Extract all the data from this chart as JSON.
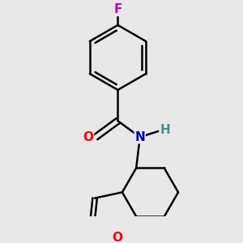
{
  "background_color": "#e8e8e8",
  "atom_colors": {
    "O": "#ff0000",
    "N": "#0000cc",
    "F": "#cc00cc",
    "H": "#4a9090"
  },
  "bond_color": "#000000",
  "bond_width": 1.8,
  "figsize": [
    3.0,
    3.0
  ],
  "dpi": 100
}
